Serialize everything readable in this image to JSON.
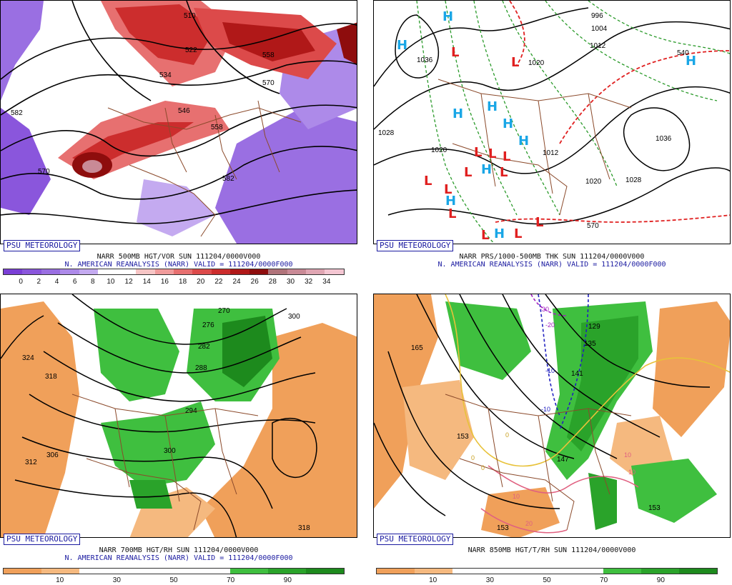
{
  "badge_text": "PSU METEOROLOGY",
  "panels": [
    {
      "id": "top-left",
      "title_line": "NARR 500MB HGT/VOR SUN 111204/0000V000",
      "valid_line": "N. AMERICAN REANALYSIS (NARR) VALID = 111204/0000F000",
      "contour_labels": [
        "510",
        "522",
        "534",
        "546",
        "558",
        "570",
        "582",
        "570",
        "582",
        "558"
      ],
      "legend": {
        "labels": [
          "0",
          "2",
          "4",
          "6",
          "8",
          "10",
          "12",
          "14",
          "16",
          "18",
          "20",
          "22",
          "24",
          "26",
          "28",
          "30",
          "32",
          "34"
        ],
        "colors": [
          "#7a3fd6",
          "#8a56dc",
          "#9a6fe2",
          "#ad8ae9",
          "#c4aaf0",
          "#ffffff",
          "#ffffff",
          "#f6c5c5",
          "#f09b9b",
          "#e77070",
          "#dc4a4a",
          "#cc2d2d",
          "#b01818",
          "#8e0d0d",
          "#b0737a",
          "#c98a96",
          "#e0a6b3",
          "#f4c6d2"
        ]
      }
    },
    {
      "id": "top-right",
      "title_line": "NARR PRS/1000-500MB THK SUN 111204/0000V000",
      "valid_line": "N. AMERICAN REANALYSIS (NARR) VALID = 111204/0000F000",
      "contour_labels": [
        "996",
        "1004",
        "1012",
        "1020",
        "1036",
        "1028",
        "1020",
        "1012",
        "1020",
        "1028",
        "1036",
        "570",
        "540"
      ]
    },
    {
      "id": "bottom-left",
      "title_line": "NARR 700MB HGT/RH SUN 111204/0000V000",
      "valid_line": "N. AMERICAN REANALYSIS (NARR) VALID = 111204/0000F000",
      "contour_labels": [
        "270",
        "276",
        "282",
        "288",
        "294",
        "300",
        "306",
        "312",
        "318",
        "324",
        "300",
        "318"
      ],
      "legend": {
        "labels": [
          "10",
          "30",
          "50",
          "70",
          "90"
        ],
        "colors": [
          "#f0a05a",
          "#f5b97f",
          "#ffffff",
          "#ffffff",
          "#ffffff",
          "#ffffff",
          "#3fbf3f",
          "#2aa32a",
          "#1d8a1d"
        ]
      }
    },
    {
      "id": "bottom-right",
      "title_line": "NARR 850MB HGT/T/RH SUN 111204/0000V000",
      "contour_labels": [
        "165",
        "153",
        "147",
        "141",
        "135",
        "129",
        "153",
        "153",
        "-30",
        "-20",
        "-10",
        "-10",
        "0",
        "0",
        "0",
        "10",
        "10",
        "10",
        "20"
      ],
      "legend": {
        "labels": [
          "10",
          "30",
          "50",
          "70",
          "90"
        ],
        "colors": [
          "#f0a05a",
          "#f5b97f",
          "#ffffff",
          "#ffffff",
          "#ffffff",
          "#ffffff",
          "#3fbf3f",
          "#2aa32a",
          "#1d8a1d"
        ]
      }
    }
  ],
  "pressure_centers": {
    "highs": [
      "H",
      "H",
      "H",
      "H",
      "H",
      "H",
      "H",
      "H",
      "H",
      "H"
    ],
    "lows": [
      "L",
      "L",
      "L",
      "L",
      "L",
      "L",
      "L",
      "L",
      "L",
      "L",
      "L",
      "L",
      "L"
    ]
  },
  "colors": {
    "badge_blue": "#1a1aa0",
    "high_blue": "#19a6e6",
    "low_red": "#e02020",
    "border_brown": "#8b4a2b",
    "thickness_green": "#2a9a2a",
    "thickness_red": "#e02020"
  }
}
